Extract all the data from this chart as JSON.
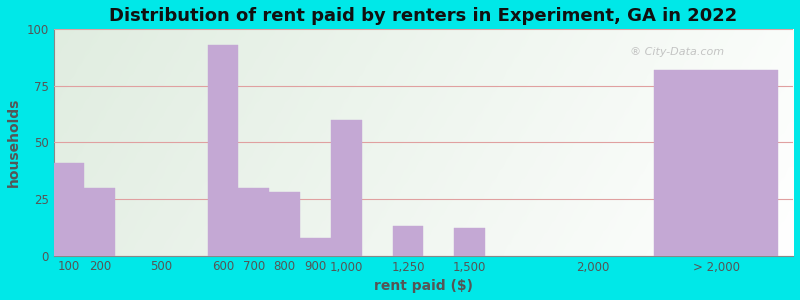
{
  "title": "Distribution of rent paid by renters in Experiment, GA in 2022",
  "xlabel": "rent paid ($)",
  "ylabel": "households",
  "bar_color": "#c4a8d4",
  "background_outer": "#00e8e8",
  "ylim": [
    0,
    100
  ],
  "yticks": [
    0,
    25,
    50,
    75,
    100
  ],
  "categories": [
    "100",
    "200",
    "500",
    "600",
    "700",
    "800",
    "900",
    "1,000",
    "1,250",
    "1,500",
    "2,000",
    "> 2,000"
  ],
  "values": [
    41,
    30,
    0,
    93,
    30,
    28,
    8,
    60,
    13,
    12,
    0,
    82
  ],
  "bar_positions": [
    0.5,
    1.5,
    3.5,
    5.5,
    6.5,
    7.5,
    8.5,
    9.5,
    11.5,
    13.5,
    17.5,
    21.5
  ],
  "bar_width": 1.0,
  "last_bar_width": 4.0,
  "xlim": [
    0,
    24
  ],
  "grid_color": "#e0a0a0",
  "title_fontsize": 13,
  "label_fontsize": 10,
  "tick_fontsize": 8.5,
  "tick_positions": [
    0.5,
    1.5,
    3.5,
    5.5,
    6.5,
    7.5,
    8.5,
    9.5,
    11.5,
    13.5,
    17.5,
    21.5
  ]
}
